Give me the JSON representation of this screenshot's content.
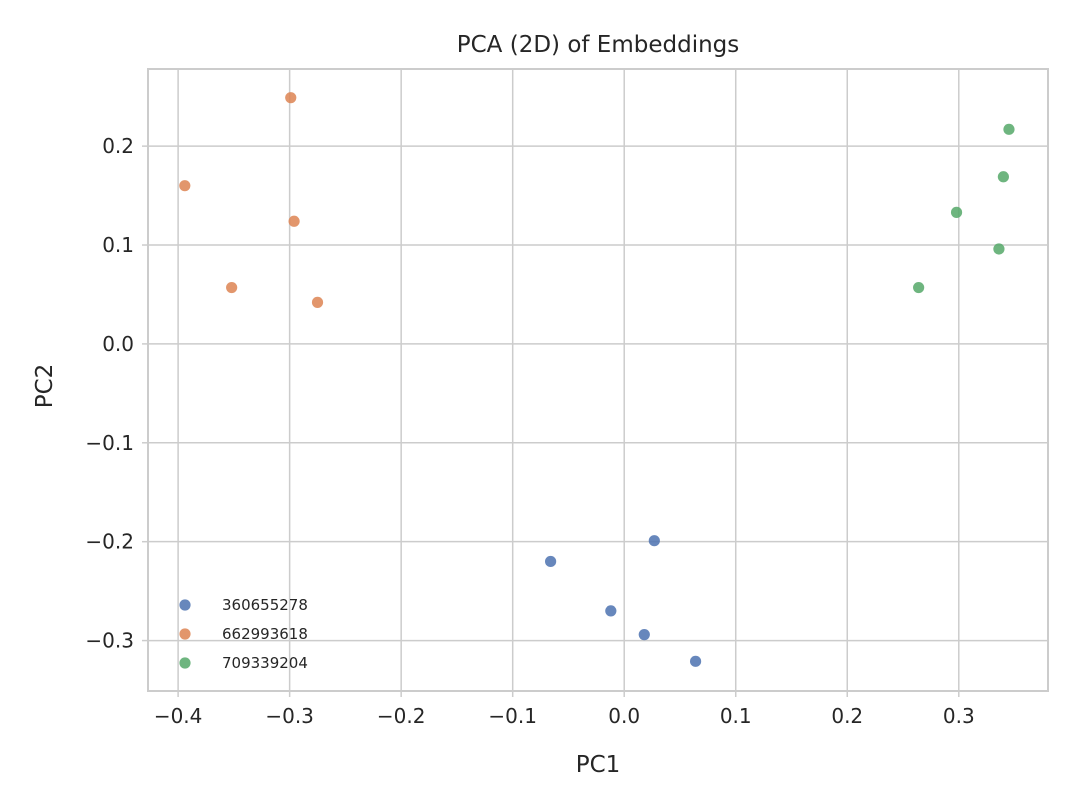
{
  "chart_data": {
    "type": "scatter",
    "title": "PCA (2D) of Embeddings",
    "xlabel": "PC1",
    "ylabel": "PC2",
    "xlim": [
      -0.427,
      0.38
    ],
    "ylim": [
      -0.351,
      0.278
    ],
    "xticks": [
      -0.4,
      -0.3,
      -0.2,
      -0.1,
      0.0,
      0.1,
      0.2,
      0.3
    ],
    "xtick_labels": [
      "−0.4",
      "−0.3",
      "−0.2",
      "−0.1",
      "0.0",
      "0.1",
      "0.2",
      "0.3"
    ],
    "yticks": [
      -0.3,
      -0.2,
      -0.1,
      0.0,
      0.1,
      0.2
    ],
    "ytick_labels": [
      "−0.3",
      "−0.2",
      "−0.1",
      "0.0",
      "0.1",
      "0.2"
    ],
    "grid": true,
    "legend_position": "bottom-left",
    "series": [
      {
        "name": "360655278",
        "color": "#4c72b0",
        "points": [
          [
            0.027,
            -0.199
          ],
          [
            -0.066,
            -0.22
          ],
          [
            -0.012,
            -0.27
          ],
          [
            0.018,
            -0.294
          ],
          [
            0.064,
            -0.321
          ]
        ]
      },
      {
        "name": "662993618",
        "color": "#dd8452",
        "points": [
          [
            -0.299,
            0.249
          ],
          [
            -0.394,
            0.16
          ],
          [
            -0.296,
            0.124
          ],
          [
            -0.352,
            0.057
          ],
          [
            -0.275,
            0.042
          ]
        ]
      },
      {
        "name": "709339204",
        "color": "#55a868",
        "points": [
          [
            0.345,
            0.217
          ],
          [
            0.34,
            0.169
          ],
          [
            0.298,
            0.133
          ],
          [
            0.336,
            0.096
          ],
          [
            0.264,
            0.057
          ]
        ]
      }
    ]
  }
}
